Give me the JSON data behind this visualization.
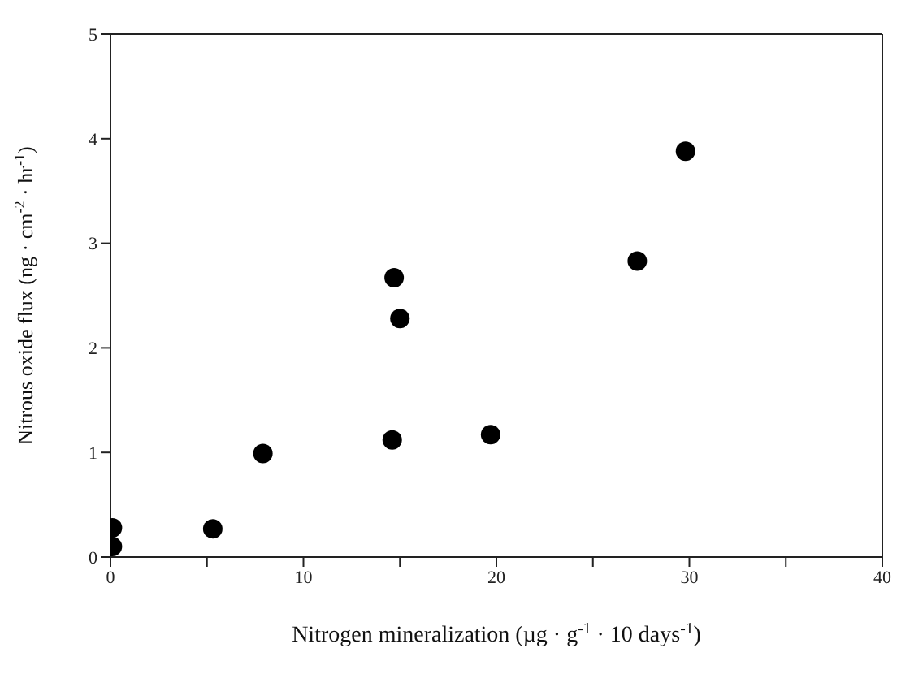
{
  "chart_data": {
    "type": "scatter",
    "xlabel": "Nitrogen mineralization  (µg · g$^{-1}$ · 10 days$^{-1}$)",
    "ylabel": "Nitrous oxide flux  (ng · cm$^{-2}$ · hr$^{-1}$)",
    "x": [
      0.1,
      0.1,
      5.3,
      7.9,
      14.6,
      14.7,
      15.0,
      19.7,
      27.3,
      29.8
    ],
    "series": [
      {
        "color": "#000000",
        "values": [
          0.28,
          0.1,
          0.27,
          0.99,
          1.12,
          2.67,
          2.28,
          1.17,
          2.83,
          3.88
        ]
      }
    ],
    "xlim": [
      0,
      40
    ],
    "ylim": [
      0,
      5
    ],
    "xticks": [
      0,
      {
        "value": 5,
        "label": null
      },
      10,
      {
        "value": 15,
        "label": null
      },
      20,
      {
        "value": 25,
        "label": null
      },
      30,
      {
        "value": 35,
        "label": null
      },
      40
    ],
    "yticks": [
      0,
      1,
      2,
      3,
      4,
      5
    ],
    "grid": false,
    "marker": "circle"
  }
}
